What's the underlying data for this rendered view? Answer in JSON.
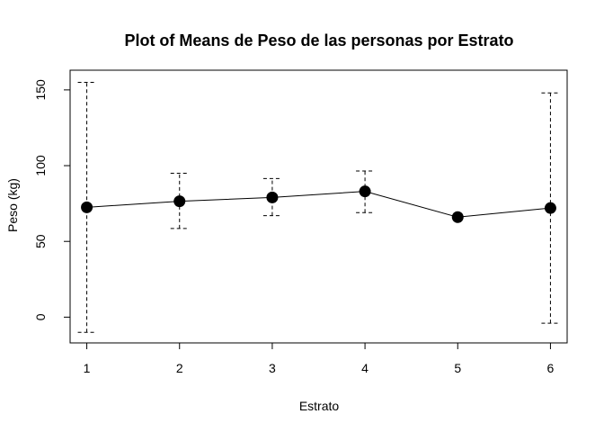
{
  "chart_data": {
    "type": "line",
    "title": "Plot of Means de Peso de las personas por Estrato",
    "xlabel": "Estrato",
    "ylabel": "Peso (kg)",
    "x": [
      1,
      2,
      3,
      4,
      5,
      6
    ],
    "x_tick_labels": [
      "1",
      "2",
      "3",
      "4",
      "5",
      "6"
    ],
    "y_ticks": [
      0,
      50,
      100,
      150
    ],
    "y_tick_labels": [
      "0",
      "50",
      "100",
      "150"
    ],
    "xlim": [
      0.82,
      6.18
    ],
    "ylim": [
      -17,
      163
    ],
    "series": [
      {
        "means": [
          72.5,
          76.5,
          79,
          83,
          66,
          72
        ],
        "lower": [
          -10,
          58.5,
          67,
          69,
          66,
          -4
        ],
        "upper": [
          155,
          95,
          91.5,
          96.5,
          66,
          148
        ]
      }
    ],
    "error_bar_style": "dashed",
    "point_marker": "filled-circle",
    "grid": false,
    "legend": "none"
  }
}
